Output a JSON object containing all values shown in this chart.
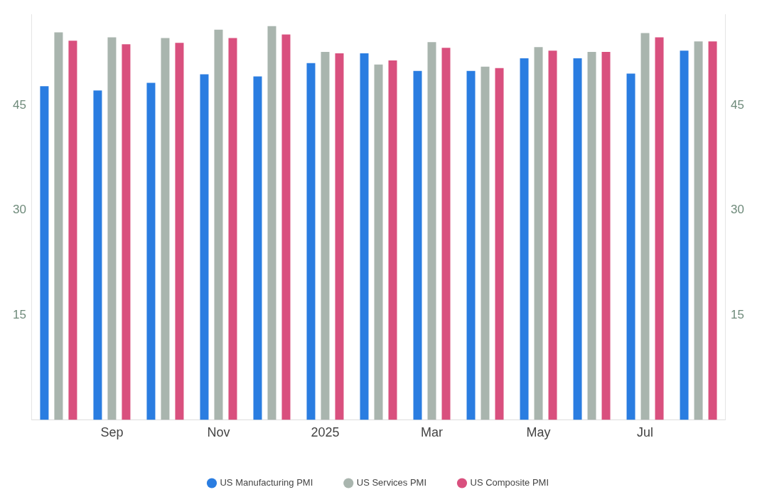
{
  "chart_data": {
    "type": "bar",
    "categories": [
      null,
      "Sep",
      null,
      "Nov",
      null,
      "2025",
      null,
      "Mar",
      null,
      "May",
      null,
      "Jul",
      null
    ],
    "series": [
      {
        "name": "US Manufacturing PMI",
        "color": "#2a7de1",
        "values": [
          47.7,
          47.1,
          48.2,
          49.4,
          49.1,
          51.0,
          52.4,
          49.9,
          49.9,
          51.7,
          51.7,
          49.5,
          52.8
        ]
      },
      {
        "name": "US Services PMI",
        "color": "#a9b5ae",
        "values": [
          55.4,
          54.7,
          54.6,
          55.8,
          56.3,
          52.6,
          50.8,
          54.0,
          50.5,
          53.3,
          52.6,
          55.3,
          54.1
        ]
      },
      {
        "name": "US Composite PMI",
        "color": "#d9507e",
        "values": [
          54.2,
          53.7,
          53.9,
          54.6,
          55.1,
          52.4,
          51.4,
          53.2,
          50.3,
          52.8,
          52.6,
          54.7,
          54.1
        ]
      }
    ],
    "ylim": [
      0,
      58
    ],
    "yticks": [
      15,
      30,
      45
    ],
    "y2lim": [
      0,
      58
    ],
    "y2ticks": [
      15,
      30,
      45
    ],
    "grid": false,
    "legend": "bottom"
  }
}
